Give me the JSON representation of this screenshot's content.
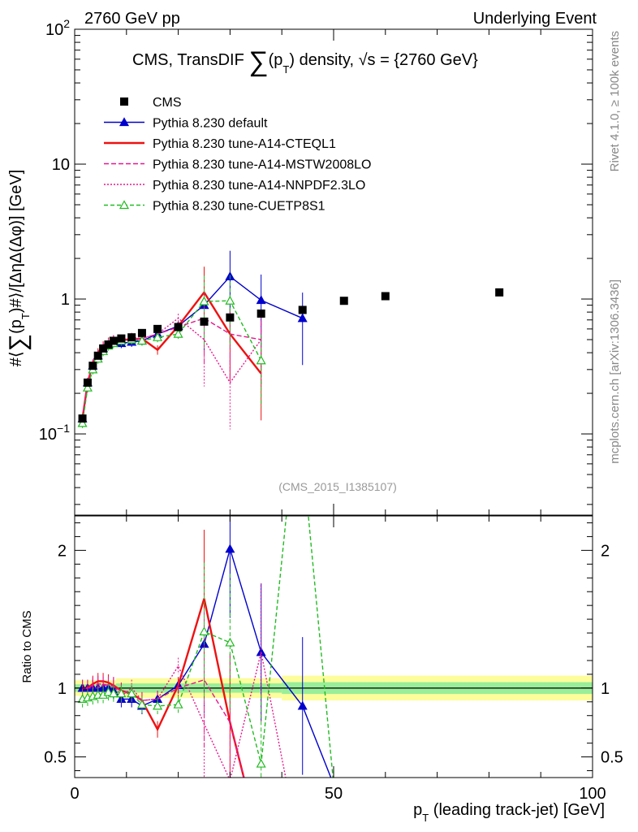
{
  "header": {
    "left": "2760 GeV pp",
    "right": "Underlying Event"
  },
  "side_text": {
    "rivet": "Rivet 4.1.0, ≥ 100k events",
    "mcplots": "mcplots.cern.ch [arXiv:1306.3436]"
  },
  "chart_data": [
    {
      "type": "line",
      "role": "main",
      "title": "CMS, TransDIF ∑(p_T) density, √s = {2760 GeV}",
      "title_parts": {
        "pre": "CMS, TransDIF ",
        "sum": "∑",
        "open": "(p",
        "sub": "T",
        "close": ") density, √s = {2760 GeV}"
      },
      "ylabel": "#⟨∑(p_T)#⟩/[ΔηΔ(Δφ)] [GeV]",
      "ylabel_parts": {
        "pre": "#⟨",
        "sum": "∑",
        "open": "(p",
        "sub": "T",
        "close": ")#⟩/[ΔηΔ(Δφ)] [GeV]"
      },
      "yscale": "log",
      "xlim": [
        0,
        100
      ],
      "ylim": [
        0.025,
        100
      ],
      "yticks": [
        {
          "value": 0.1,
          "base": "10",
          "exp": "−1"
        },
        {
          "value": 1,
          "base": "1",
          "exp": ""
        },
        {
          "value": 10,
          "base": "10",
          "exp": ""
        },
        {
          "value": 100,
          "base": "10",
          "exp": "2"
        }
      ],
      "watermark": "(CMS_2015_I1385107)",
      "legend_position": "top-left",
      "series": [
        {
          "name": "CMS",
          "style": "data",
          "color": "#000000",
          "x": [
            1.5,
            2.5,
            3.5,
            4.5,
            5.5,
            6.5,
            7.5,
            9,
            11,
            13,
            16,
            20,
            25,
            30,
            36,
            44,
            52,
            60,
            82
          ],
          "y": [
            0.13,
            0.24,
            0.32,
            0.38,
            0.43,
            0.46,
            0.49,
            0.51,
            0.52,
            0.56,
            0.6,
            0.62,
            0.68,
            0.73,
            0.78,
            0.83,
            0.97,
            1.05,
            1.12
          ]
        },
        {
          "name": "Pythia 8.230 default",
          "style": "triangle",
          "color": "#0000cc",
          "dash": "",
          "x": [
            1.5,
            2.5,
            3.5,
            4.5,
            5.5,
            6.5,
            7.5,
            9,
            11,
            13,
            16,
            20,
            25,
            30,
            36,
            44
          ],
          "y": [
            0.13,
            0.24,
            0.32,
            0.38,
            0.43,
            0.46,
            0.48,
            0.47,
            0.48,
            0.49,
            0.55,
            0.63,
            0.9,
            1.47,
            0.98,
            0.72
          ]
        },
        {
          "name": "Pythia 8.230 tune-A14-CTEQL1",
          "style": "line",
          "color": "#ee1111",
          "dash": "",
          "x": [
            1.5,
            2.5,
            3.5,
            4.5,
            5.5,
            6.5,
            7.5,
            9,
            11,
            13,
            16,
            20,
            25,
            30,
            36
          ],
          "y": [
            0.13,
            0.24,
            0.33,
            0.4,
            0.45,
            0.48,
            0.5,
            0.5,
            0.5,
            0.51,
            0.42,
            0.63,
            1.12,
            0.55,
            0.28
          ]
        },
        {
          "name": "Pythia 8.230 tune-A14-MSTW2008LO",
          "style": "line",
          "color": "#e8168e",
          "dash": "6,3",
          "x": [
            1.5,
            2.5,
            3.5,
            4.5,
            5.5,
            6.5,
            7.5,
            9,
            11,
            13,
            16,
            20,
            25,
            30,
            36
          ],
          "y": [
            0.13,
            0.24,
            0.33,
            0.39,
            0.44,
            0.47,
            0.5,
            0.5,
            0.5,
            0.51,
            0.55,
            0.62,
            0.72,
            0.55,
            0.5
          ]
        },
        {
          "name": "Pythia 8.230 tune-A14-NNPDF2.3LO",
          "style": "line",
          "color": "#e8168e",
          "dash": "2,2",
          "x": [
            1.5,
            2.5,
            3.5,
            4.5,
            5.5,
            6.5,
            7.5,
            9,
            11,
            13,
            16,
            20,
            25,
            30,
            36
          ],
          "y": [
            0.13,
            0.24,
            0.32,
            0.38,
            0.44,
            0.47,
            0.5,
            0.48,
            0.52,
            0.51,
            0.55,
            0.72,
            0.5,
            0.24,
            0.5
          ]
        },
        {
          "name": "Pythia 8.230 tune-CUETP8S1",
          "style": "open-triangle",
          "color": "#22bb22",
          "dash": "5,3",
          "x": [
            1.5,
            2.5,
            3.5,
            4.5,
            5.5,
            6.5,
            7.5,
            9,
            11,
            13,
            16,
            20,
            25,
            30,
            36
          ],
          "y": [
            0.12,
            0.22,
            0.3,
            0.36,
            0.41,
            0.45,
            0.47,
            0.49,
            0.5,
            0.49,
            0.52,
            0.55,
            0.96,
            0.97,
            0.35
          ]
        }
      ]
    },
    {
      "type": "line",
      "role": "ratio",
      "ylabel": "Ratio to CMS",
      "xlabel": "p_T (leading track-jet) [GeV]",
      "xlabel_parts": {
        "pre": "p",
        "sub": "T",
        "post": " (leading track-jet) [GeV]"
      },
      "xlim": [
        0,
        100
      ],
      "ylim": [
        0.35,
        2.25
      ],
      "xticks": [
        0,
        50,
        100
      ],
      "yticks": [
        0.5,
        1,
        2
      ],
      "bands": {
        "inner": 0.045,
        "outer": 0.075
      },
      "series": [
        {
          "name": "Pythia 8.230 default",
          "x": [
            1.5,
            2.5,
            3.5,
            4.5,
            5.5,
            6.5,
            7.5,
            9,
            11,
            13,
            16,
            20,
            25,
            30,
            36,
            44,
            50
          ],
          "y": [
            1.0,
            1.0,
            1.0,
            1.0,
            1.0,
            1.0,
            0.98,
            0.92,
            0.92,
            0.87,
            0.92,
            1.02,
            1.32,
            2.01,
            1.26,
            0.87,
            0.3
          ]
        },
        {
          "name": "Pythia 8.230 tune-A14-CTEQL1",
          "x": [
            1.5,
            2.5,
            3.5,
            4.5,
            5.5,
            6.5,
            7.5,
            9,
            11,
            13,
            16,
            20,
            25,
            30,
            33
          ],
          "y": [
            1.0,
            1.0,
            1.03,
            1.05,
            1.05,
            1.04,
            1.02,
            0.98,
            0.96,
            0.91,
            0.7,
            1.02,
            1.65,
            0.75,
            0.3
          ]
        },
        {
          "name": "Pythia 8.230 tune-A14-MSTW2008LO",
          "x": [
            1.5,
            2.5,
            3.5,
            4.5,
            5.5,
            6.5,
            7.5,
            9,
            11,
            13,
            16,
            20,
            25,
            30,
            33
          ],
          "y": [
            1.0,
            1.0,
            1.02,
            1.03,
            1.03,
            1.02,
            1.01,
            0.98,
            0.96,
            0.91,
            0.92,
            1.0,
            1.06,
            0.75,
            0.3
          ]
        },
        {
          "name": "Pythia 8.230 tune-A14-NNPDF2.3LO",
          "x": [
            1.5,
            2.5,
            3.5,
            4.5,
            5.5,
            6.5,
            7.5,
            9,
            11,
            13,
            16,
            20,
            25,
            30,
            36,
            41
          ],
          "y": [
            1.0,
            1.0,
            1.0,
            1.0,
            1.02,
            1.02,
            1.02,
            0.94,
            1.0,
            0.91,
            0.92,
            1.16,
            0.74,
            0.33,
            1.26,
            0.3
          ]
        },
        {
          "name": "Pythia 8.230 tune-CUETP8S1",
          "x": [
            1.5,
            2.5,
            3.5,
            4.5,
            5.5,
            6.5,
            7.5,
            9,
            11,
            13,
            16,
            20,
            25,
            30,
            36,
            41,
            45,
            50
          ],
          "y": [
            0.92,
            0.93,
            0.94,
            0.95,
            0.95,
            0.97,
            0.96,
            0.96,
            0.96,
            0.88,
            0.87,
            0.88,
            1.41,
            1.33,
            0.45,
            2.3,
            2.3,
            0.3
          ]
        }
      ]
    }
  ]
}
